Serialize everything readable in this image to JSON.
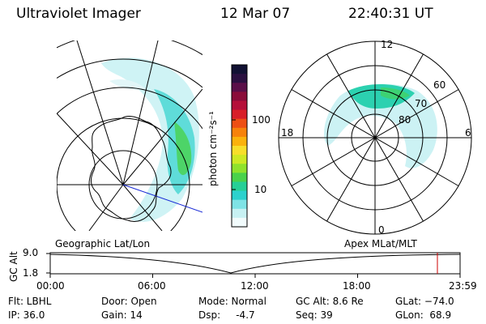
{
  "header": {
    "instrument": "Ultraviolet Imager",
    "date": "12 Mar 07",
    "time": "22:40:31 UT"
  },
  "colorbar": {
    "unit_label": "photon cm⁻²s⁻¹",
    "ticks": [
      "100",
      "10"
    ],
    "colors": [
      "#111133",
      "#2a1040",
      "#5a0f48",
      "#8a0d3a",
      "#b5103a",
      "#d81f28",
      "#ee4f14",
      "#f7820b",
      "#fbb20c",
      "#f7df2a",
      "#cde924",
      "#8fe22c",
      "#49d24b",
      "#26cf96",
      "#2cd1cd",
      "#7fe3e6",
      "#c7f1f3",
      "#f1fbfc"
    ]
  },
  "left_map": {
    "label": "Geographic Lat/Lon"
  },
  "right_map": {
    "label": "Apex MLat/MLT",
    "mlt_labels": {
      "top": "12",
      "left": "18",
      "right": "6",
      "bottom": "0"
    },
    "lat_labels": [
      "60",
      "70",
      "80"
    ]
  },
  "altitude_plot": {
    "axis_label": "GC Alt",
    "y_ticks": [
      "9.0",
      "1.8"
    ],
    "x_ticks": [
      "00:00",
      "06:00",
      "12:00",
      "18:00",
      "23:59"
    ]
  },
  "status": {
    "row1": [
      {
        "key": "flt",
        "text": "Flt: LBHL"
      },
      {
        "key": "door",
        "text": "Door: Open"
      },
      {
        "key": "mode",
        "text": "Mode: Normal"
      },
      {
        "key": "gcalt",
        "text": "GC Alt: 8.6 Re"
      },
      {
        "key": "glat",
        "text": "GLat: −74.0"
      }
    ],
    "row2": [
      {
        "key": "ip",
        "text": "IP: 36.0"
      },
      {
        "key": "gain",
        "text": "Gain: 14"
      },
      {
        "key": "dsp",
        "text": "Dsp:     -4.7"
      },
      {
        "key": "seq",
        "text": "Seq: 39"
      },
      {
        "key": "glon",
        "text": "GLon:  68.9"
      }
    ]
  }
}
